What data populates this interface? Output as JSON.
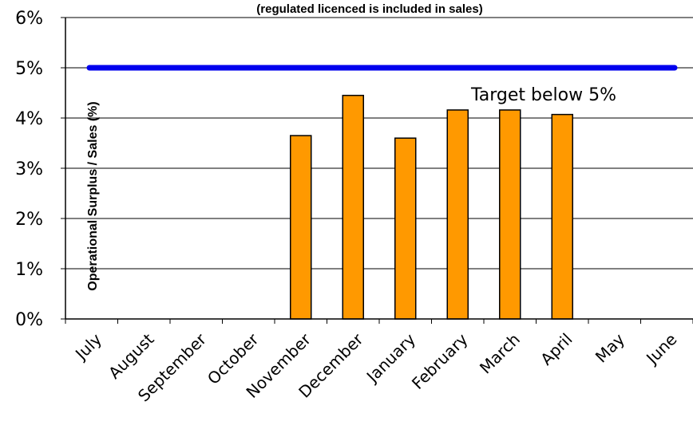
{
  "chart_data": {
    "type": "bar",
    "title": "(regulated licenced is included in sales)",
    "xlabel": "",
    "ylabel": "Operational Surplus / Sales (%)",
    "categories": [
      "July",
      "August",
      "September",
      "October",
      "November",
      "December",
      "January",
      "February",
      "March",
      "April",
      "May",
      "June"
    ],
    "series": [
      {
        "values": [
          null,
          null,
          null,
          null,
          3.65,
          4.45,
          3.6,
          4.16,
          4.16,
          4.07,
          null,
          null
        ],
        "color": "#ff9900"
      }
    ],
    "target": {
      "value": 5,
      "label": "Target below 5%",
      "color": "#0000ee"
    },
    "ylim": [
      0,
      6
    ],
    "yticks": [
      "0%",
      "1%",
      "2%",
      "3%",
      "4%",
      "5%",
      "6%"
    ],
    "grid": true,
    "legend": "none"
  }
}
